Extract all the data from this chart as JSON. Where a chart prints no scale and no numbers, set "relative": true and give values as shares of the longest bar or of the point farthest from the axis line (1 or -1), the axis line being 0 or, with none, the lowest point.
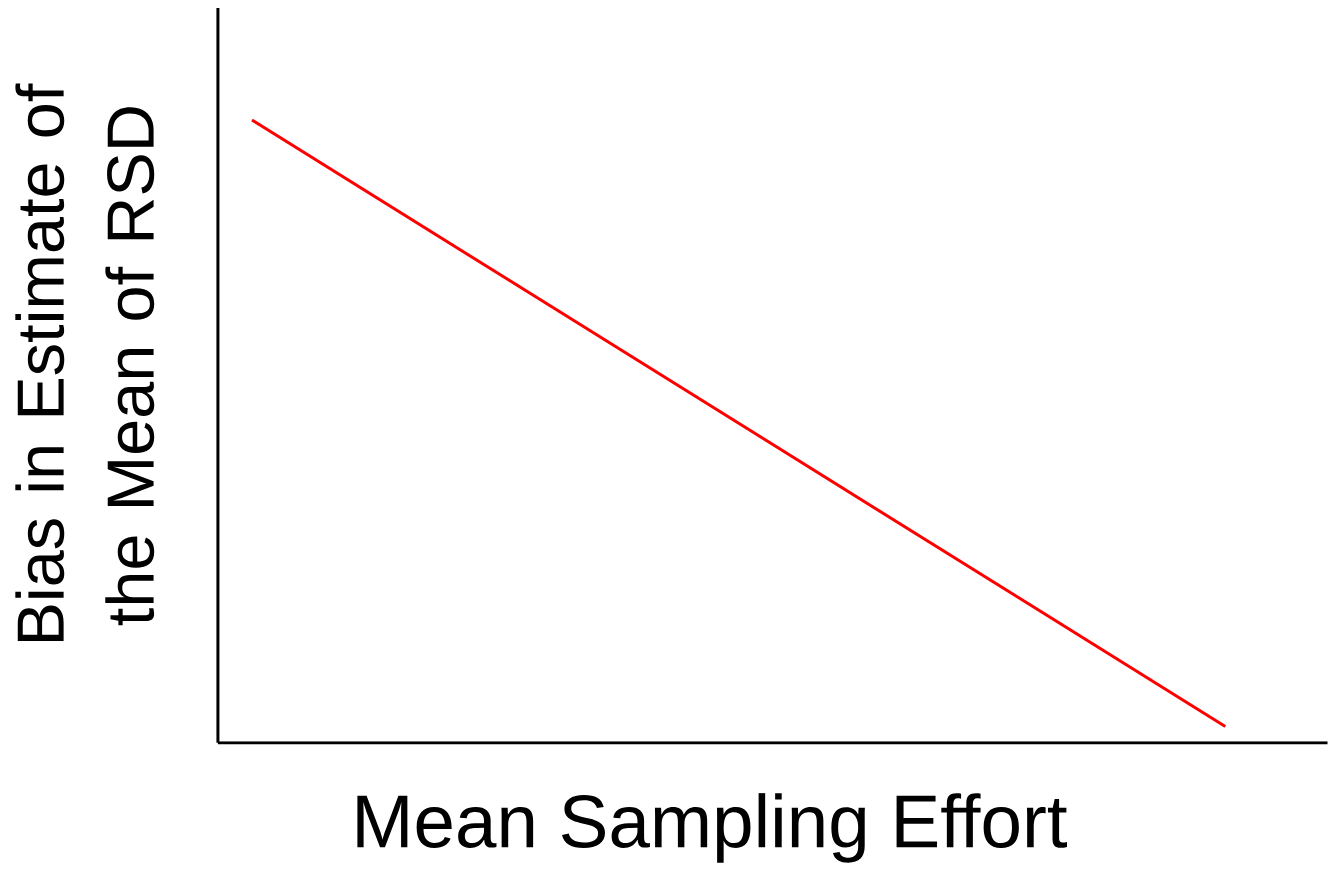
{
  "chart_data": {
    "type": "line",
    "relative": true,
    "categories": [
      null,
      null
    ],
    "xlabel": "Mean Sampling Effort",
    "ylabel": "Bias in Estimate of the Mean of RSD",
    "ref_lines": [
      {
        "axis": "y",
        "value": 0,
        "color": "#000000"
      }
    ],
    "series": [
      {
        "color": "#ff0000",
        "values": [
          1,
          0.026
        ]
      }
    ]
  }
}
